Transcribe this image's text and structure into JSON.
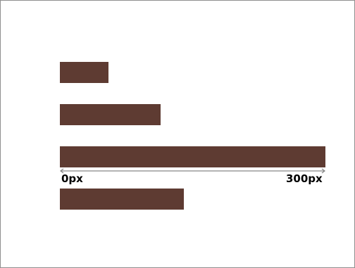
{
  "colors": {
    "bar": "#5e3b32",
    "border": "#8f8f8f",
    "ruler": "#888888"
  },
  "scale": {
    "min_label": "0px",
    "max_label": "300px",
    "min": 0,
    "max": 300
  },
  "bars": [
    {
      "value": 55
    },
    {
      "value": 114
    },
    {
      "value": 300
    },
    {
      "value": 140
    }
  ]
}
